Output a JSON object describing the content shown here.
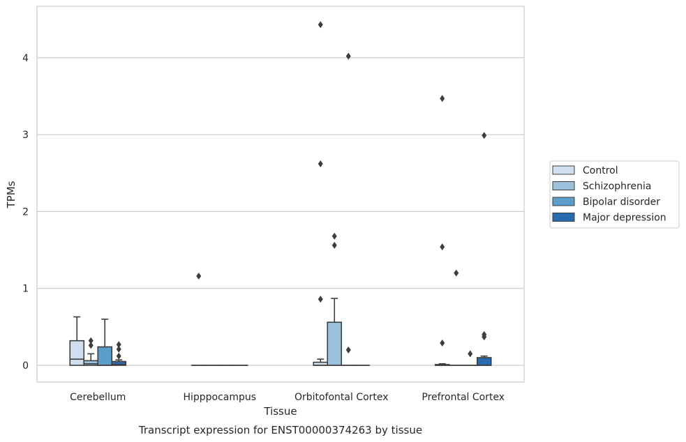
{
  "chart_data": {
    "type": "box",
    "xlabel": "Tissue",
    "ylabel": "TPMs",
    "caption": "Transcript expression for ENST00000374263 by tissue",
    "ylim": [
      -0.22,
      4.67
    ],
    "yticks": [
      0,
      1,
      2,
      3,
      4
    ],
    "grid": "horizontal",
    "legend_position": "right",
    "categories": [
      "Cerebellum",
      "Hipppocampus",
      "Orbitofontal Cortex",
      "Prefrontal Cortex"
    ],
    "series": [
      {
        "name": "Control",
        "color": "#cfdff0",
        "boxes": [
          {
            "q1": 0,
            "median": 0.08,
            "q3": 0.32,
            "whisker_low": 0,
            "whisker_high": 0.63,
            "outliers": []
          },
          {
            "q1": 0,
            "median": 0,
            "q3": 0,
            "whisker_low": 0,
            "whisker_high": 0,
            "outliers": [
              1.16
            ]
          },
          {
            "q1": 0,
            "median": 0,
            "q3": 0.04,
            "whisker_low": 0,
            "whisker_high": 0.08,
            "outliers": [
              4.43,
              2.62,
              0.86
            ]
          },
          {
            "q1": 0,
            "median": 0,
            "q3": 0.01,
            "whisker_low": 0,
            "whisker_high": 0.02,
            "outliers": [
              3.47,
              1.54,
              0.29
            ]
          }
        ]
      },
      {
        "name": "Schizophrenia",
        "color": "#9ac2de",
        "boxes": [
          {
            "q1": 0,
            "median": 0.02,
            "q3": 0.06,
            "whisker_low": 0,
            "whisker_high": 0.15,
            "outliers": [
              0.32,
              0.26
            ]
          },
          {
            "q1": 0,
            "median": 0,
            "q3": 0,
            "whisker_low": 0,
            "whisker_high": 0,
            "outliers": []
          },
          {
            "q1": 0,
            "median": 0,
            "q3": 0.56,
            "whisker_low": 0,
            "whisker_high": 0.87,
            "outliers": [
              1.68,
              1.56
            ]
          },
          {
            "q1": 0,
            "median": 0,
            "q3": 0,
            "whisker_low": 0,
            "whisker_high": 0,
            "outliers": [
              1.2
            ]
          }
        ]
      },
      {
        "name": "Bipolar disorder",
        "color": "#5b9dcb",
        "boxes": [
          {
            "q1": 0,
            "median": 0,
            "q3": 0.24,
            "whisker_low": 0,
            "whisker_high": 0.6,
            "outliers": []
          },
          {
            "q1": 0,
            "median": 0,
            "q3": 0,
            "whisker_low": 0,
            "whisker_high": 0,
            "outliers": []
          },
          {
            "q1": 0,
            "median": 0,
            "q3": 0,
            "whisker_low": 0,
            "whisker_high": 0,
            "outliers": [
              4.02,
              0.2
            ]
          },
          {
            "q1": 0,
            "median": 0,
            "q3": 0,
            "whisker_low": 0,
            "whisker_high": 0,
            "outliers": [
              0.15
            ]
          }
        ]
      },
      {
        "name": "Major depression",
        "color": "#2a6aaf",
        "boxes": [
          {
            "q1": 0,
            "median": 0.01,
            "q3": 0.05,
            "whisker_low": 0,
            "whisker_high": 0.07,
            "outliers": [
              0.27,
              0.21,
              0.12
            ]
          },
          {
            "q1": 0,
            "median": 0,
            "q3": 0,
            "whisker_low": 0,
            "whisker_high": 0,
            "outliers": []
          },
          {
            "q1": 0,
            "median": 0,
            "q3": 0,
            "whisker_low": 0,
            "whisker_high": 0,
            "outliers": []
          },
          {
            "q1": 0,
            "median": 0,
            "q3": 0.1,
            "whisker_low": 0,
            "whisker_high": 0.12,
            "outliers": [
              2.99,
              0.4,
              0.37
            ]
          }
        ]
      }
    ]
  }
}
